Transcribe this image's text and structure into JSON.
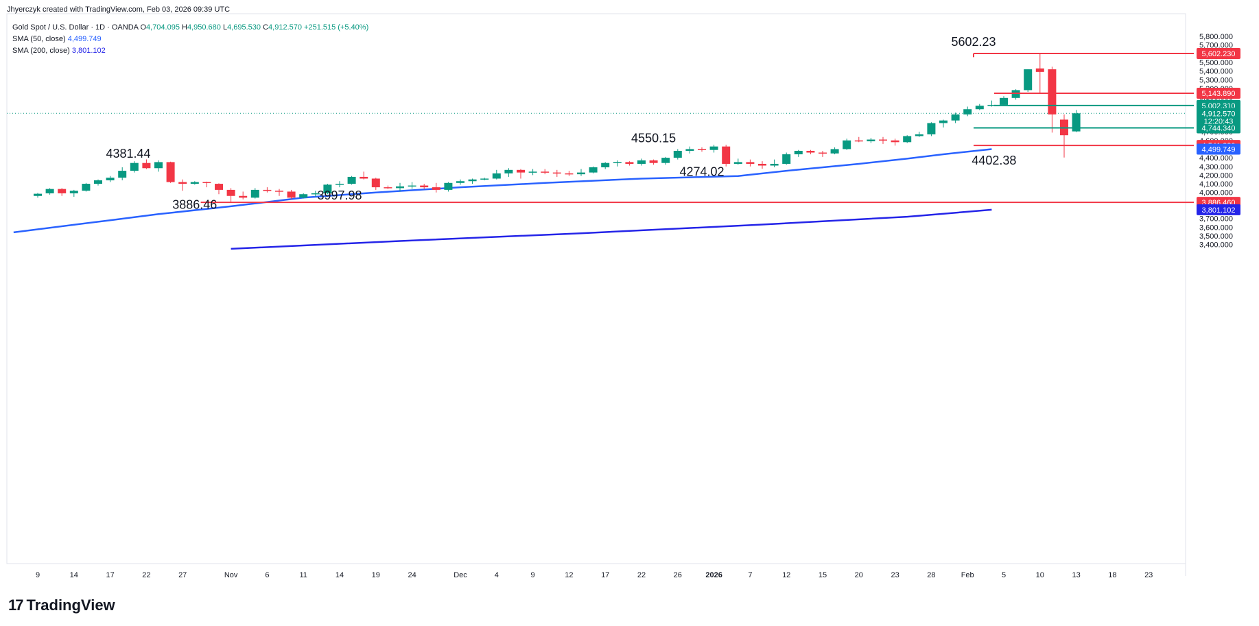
{
  "header": {
    "credit": "Jhyerczyk created with TradingView.com, Feb 03, 2026 09:39 UTC",
    "symbol": "Gold Spot / U.S. Dollar · 1D · OANDA",
    "ohlc": {
      "o_label": "O",
      "o": "4,704.095",
      "h_label": "H",
      "h": "4,950.680",
      "l_label": "L",
      "l": "4,695.530",
      "c_label": "C",
      "c": "4,912.570",
      "change": "+251.515 (+5.40%)"
    },
    "sma50": {
      "label": "SMA (50, close)",
      "value": "4,499.749"
    },
    "sma200": {
      "label": "SMA (200, close)",
      "value": "3,801.102"
    }
  },
  "brand": {
    "name": "TradingView",
    "mark": "17"
  },
  "colors": {
    "up": "#089981",
    "down": "#f23645",
    "sma50": "#2962ff",
    "sma200": "#2424e8",
    "support": "#f23645",
    "resistance": "#089981",
    "grid": "#f0f3fa"
  },
  "chart_data": {
    "type": "candlestick",
    "ylim": [
      3350,
      5850
    ],
    "y_ticks": [
      "3,400.000",
      "3,500.000",
      "3,600.000",
      "3,700.000",
      "3,800.000",
      "3,900.000",
      "4,000.000",
      "4,100.000",
      "4,200.000",
      "4,300.000",
      "4,400.000",
      "4,500.000",
      "4,600.000",
      "4,700.000",
      "4,800.000",
      "4,900.000",
      "5,000.000",
      "5,100.000",
      "5,200.000",
      "5,300.000",
      "5,400.000",
      "5,500.000",
      "5,600.000",
      "5,700.000",
      "5,800.000"
    ],
    "x_ticks": [
      {
        "label": "9",
        "i": 0
      },
      {
        "label": "14",
        "i": 3
      },
      {
        "label": "17",
        "i": 6
      },
      {
        "label": "22",
        "i": 9
      },
      {
        "label": "27",
        "i": 12
      },
      {
        "label": "Nov",
        "i": 16
      },
      {
        "label": "6",
        "i": 19
      },
      {
        "label": "11",
        "i": 22
      },
      {
        "label": "14",
        "i": 25
      },
      {
        "label": "19",
        "i": 28
      },
      {
        "label": "24",
        "i": 31
      },
      {
        "label": "Dec",
        "i": 35
      },
      {
        "label": "4",
        "i": 38
      },
      {
        "label": "9",
        "i": 41
      },
      {
        "label": "12",
        "i": 44
      },
      {
        "label": "17",
        "i": 47
      },
      {
        "label": "22",
        "i": 50
      },
      {
        "label": "26",
        "i": 53
      },
      {
        "label": "2026",
        "i": 56,
        "bold": true
      },
      {
        "label": "7",
        "i": 59
      },
      {
        "label": "12",
        "i": 62
      },
      {
        "label": "15",
        "i": 65
      },
      {
        "label": "20",
        "i": 68
      },
      {
        "label": "23",
        "i": 71
      },
      {
        "label": "28",
        "i": 74
      },
      {
        "label": "Feb",
        "i": 77
      },
      {
        "label": "5",
        "i": 80
      },
      {
        "label": "10",
        "i": 83
      },
      {
        "label": "13",
        "i": 86
      },
      {
        "label": "18",
        "i": 89
      },
      {
        "label": "23",
        "i": 92
      }
    ],
    "candles": [
      [
        3960,
        3995,
        3940,
        3985
      ],
      [
        3990,
        4050,
        3975,
        4040
      ],
      [
        4040,
        4050,
        3960,
        3990
      ],
      [
        3990,
        4030,
        3950,
        4020
      ],
      [
        4020,
        4110,
        4010,
        4100
      ],
      [
        4100,
        4150,
        4080,
        4140
      ],
      [
        4140,
        4190,
        4120,
        4170
      ],
      [
        4170,
        4290,
        4140,
        4250
      ],
      [
        4250,
        4360,
        4230,
        4340
      ],
      [
        4340,
        4381,
        4270,
        4280
      ],
      [
        4280,
        4370,
        4240,
        4350
      ],
      [
        4350,
        4355,
        4110,
        4120
      ],
      [
        4120,
        4150,
        4020,
        4100
      ],
      [
        4100,
        4130,
        4090,
        4120
      ],
      [
        4120,
        4125,
        4060,
        4110
      ],
      [
        4100,
        4105,
        3980,
        4030
      ],
      [
        4030,
        4050,
        3886,
        3960
      ],
      [
        3960,
        4010,
        3920,
        3940
      ],
      [
        3940,
        4050,
        3930,
        4030
      ],
      [
        4030,
        4060,
        4000,
        4020
      ],
      [
        4020,
        4040,
        3960,
        4010
      ],
      [
        4010,
        4030,
        3920,
        3940
      ],
      [
        3940,
        3990,
        3930,
        3980
      ],
      [
        3980,
        4020,
        3950,
        3990
      ],
      [
        3990,
        4100,
        3980,
        4090
      ],
      [
        4090,
        4130,
        4060,
        4100
      ],
      [
        4100,
        4190,
        4090,
        4180
      ],
      [
        4180,
        4240,
        4150,
        4160
      ],
      [
        4160,
        4170,
        4030,
        4060
      ],
      [
        4060,
        4080,
        4040,
        4050
      ],
      [
        4050,
        4110,
        4010,
        4070
      ],
      [
        4070,
        4120,
        4040,
        4080
      ],
      [
        4080,
        4100,
        4040,
        4060
      ],
      [
        4060,
        4110,
        4000,
        4030
      ],
      [
        4030,
        4120,
        4010,
        4110
      ],
      [
        4110,
        4150,
        4090,
        4130
      ],
      [
        4130,
        4160,
        4100,
        4150
      ],
      [
        4150,
        4170,
        4140,
        4160
      ],
      [
        4160,
        4260,
        4150,
        4220
      ],
      [
        4220,
        4280,
        4180,
        4260
      ],
      [
        4260,
        4270,
        4160,
        4230
      ],
      [
        4230,
        4270,
        4200,
        4240
      ],
      [
        4240,
        4270,
        4210,
        4230
      ],
      [
        4230,
        4260,
        4180,
        4220
      ],
      [
        4220,
        4250,
        4190,
        4210
      ],
      [
        4210,
        4270,
        4190,
        4230
      ],
      [
        4230,
        4300,
        4220,
        4290
      ],
      [
        4290,
        4350,
        4270,
        4340
      ],
      [
        4340,
        4370,
        4300,
        4350
      ],
      [
        4350,
        4360,
        4310,
        4330
      ],
      [
        4330,
        4390,
        4310,
        4370
      ],
      [
        4370,
        4380,
        4320,
        4340
      ],
      [
        4340,
        4410,
        4320,
        4400
      ],
      [
        4400,
        4500,
        4380,
        4480
      ],
      [
        4480,
        4530,
        4450,
        4500
      ],
      [
        4500,
        4520,
        4470,
        4490
      ],
      [
        4490,
        4550,
        4460,
        4530
      ],
      [
        4530,
        4550,
        4300,
        4330
      ],
      [
        4330,
        4390,
        4320,
        4350
      ],
      [
        4350,
        4380,
        4300,
        4330
      ],
      [
        4330,
        4360,
        4274,
        4310
      ],
      [
        4310,
        4380,
        4290,
        4330
      ],
      [
        4330,
        4460,
        4320,
        4440
      ],
      [
        4440,
        4490,
        4410,
        4480
      ],
      [
        4480,
        4490,
        4440,
        4460
      ],
      [
        4460,
        4480,
        4410,
        4450
      ],
      [
        4450,
        4520,
        4440,
        4500
      ],
      [
        4500,
        4620,
        4490,
        4600
      ],
      [
        4600,
        4640,
        4580,
        4590
      ],
      [
        4590,
        4630,
        4570,
        4610
      ],
      [
        4610,
        4640,
        4560,
        4600
      ],
      [
        4600,
        4620,
        4540,
        4580
      ],
      [
        4580,
        4660,
        4570,
        4650
      ],
      [
        4650,
        4700,
        4640,
        4670
      ],
      [
        4670,
        4810,
        4650,
        4800
      ]
    ],
    "sma50": [],
    "sma200": [],
    "levels": [
      {
        "value": 5602.23,
        "label": "5,602.230",
        "kind": "support"
      },
      {
        "value": 5143.89,
        "label": "5,143.890",
        "kind": "support"
      },
      {
        "value": 5002.31,
        "label": "5,002.310",
        "kind": "resistance"
      },
      {
        "value": 4744.34,
        "label": "4,744.340",
        "kind": "resistance"
      },
      {
        "value": 4541.88,
        "label": "4,541.880",
        "kind": "support"
      },
      {
        "value": 3886.46,
        "label": "3,886.460",
        "kind": "support"
      }
    ],
    "price": {
      "value": 4912.57,
      "label": "4,912.570",
      "countdown": "12:20:43"
    },
    "sma_labels": [
      {
        "value": 4499.749,
        "label": "4,499.749",
        "kind": "sma50"
      },
      {
        "value": 3801.102,
        "label": "3,801.102",
        "kind": "sma200"
      }
    ],
    "annotations": [
      "5602.23",
      "4381.44",
      "3886.46",
      "3997.98",
      "4550.15",
      "4274.02",
      "4402.38"
    ]
  }
}
